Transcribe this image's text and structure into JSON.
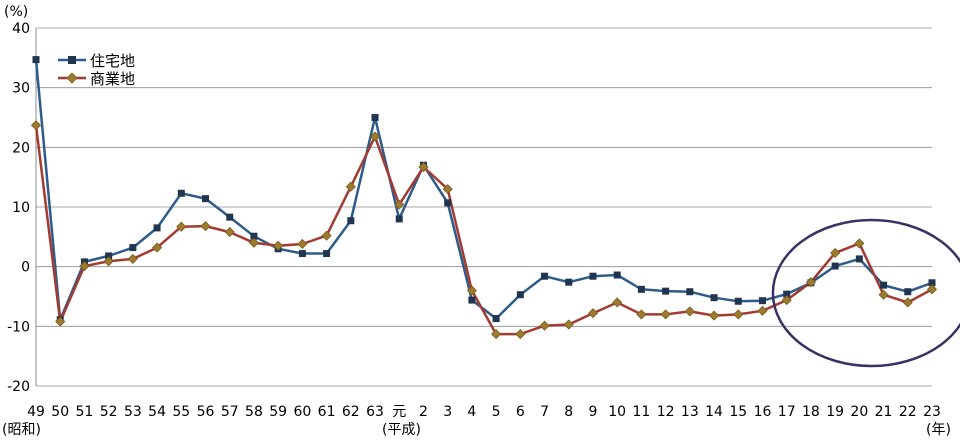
{
  "chart_data": {
    "type": "line",
    "y_unit_label": "(%)",
    "ylim": [
      -20,
      40
    ],
    "yticks": [
      -20,
      -10,
      0,
      10,
      20,
      30,
      40
    ],
    "grid": true,
    "legend_position": "top-left",
    "categories": [
      "49",
      "50",
      "51",
      "52",
      "53",
      "54",
      "55",
      "56",
      "57",
      "58",
      "59",
      "60",
      "61",
      "62",
      "63",
      "元",
      "2",
      "3",
      "4",
      "5",
      "6",
      "7",
      "8",
      "9",
      "10",
      "11",
      "12",
      "13",
      "14",
      "15",
      "16",
      "17",
      "18",
      "19",
      "20",
      "21",
      "22",
      "23"
    ],
    "era_labels": {
      "showa": "(昭和)",
      "heisei": "(平成)"
    },
    "x_unit_label": "(年)",
    "series": [
      {
        "name": "住宅地",
        "color": "#2E5C8A",
        "marker": "square",
        "values": [
          34.7,
          -8.9,
          0.8,
          1.8,
          3.2,
          6.5,
          12.3,
          11.4,
          8.3,
          5.1,
          3.0,
          2.2,
          2.2,
          7.7,
          25.0,
          8.0,
          17.0,
          10.7,
          -5.6,
          -8.7,
          -4.7,
          -1.6,
          -2.6,
          -1.6,
          -1.4,
          -3.8,
          -4.1,
          -4.2,
          -5.2,
          -5.8,
          -5.7,
          -4.6,
          -2.7,
          0.1,
          1.3,
          -3.1,
          -4.2,
          -2.7
        ]
      },
      {
        "name": "商業地",
        "color": "#A33B32",
        "marker": "diamond",
        "values": [
          23.7,
          -9.2,
          0.1,
          0.9,
          1.3,
          3.2,
          6.7,
          6.8,
          5.8,
          4.0,
          3.5,
          3.8,
          5.2,
          13.4,
          21.8,
          10.4,
          16.7,
          13.0,
          -4.0,
          -11.3,
          -11.3,
          -9.9,
          -9.7,
          -7.8,
          -6.0,
          -8.0,
          -8.0,
          -7.5,
          -8.2,
          -8.0,
          -7.4,
          -5.6,
          -2.6,
          2.3,
          3.9,
          -4.7,
          -6.0,
          -3.8
        ]
      }
    ]
  },
  "annotation": {
    "highlight_ellipse_color": "#3C3164",
    "highlight_from": "18",
    "highlight_to": "23"
  }
}
